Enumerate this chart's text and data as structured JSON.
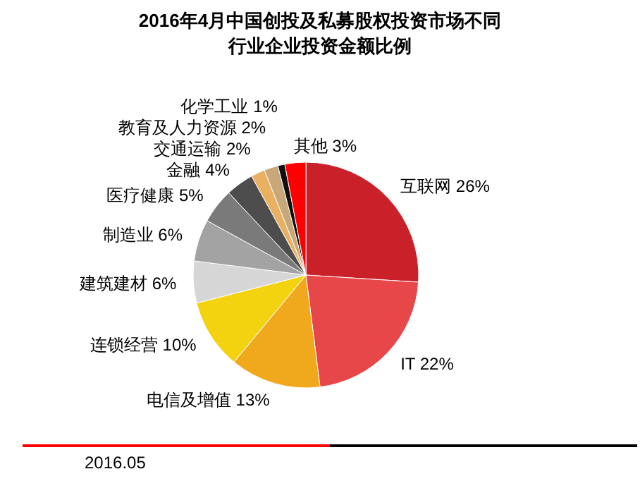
{
  "chart_data": {
    "type": "pie",
    "title": "2016年4月中国创投及私募股权投资市场不同行业企业投资金额比例",
    "categories": [
      "互联网",
      "IT",
      "电信及增值",
      "连锁经营",
      "建筑建材",
      "制造业",
      "医疗健康",
      "金融",
      "交通运输",
      "教育及人力资源",
      "化学工业",
      "其他"
    ],
    "values": [
      26,
      22,
      13,
      10,
      6,
      6,
      5,
      4,
      2,
      2,
      1,
      3
    ],
    "value_labels": [
      "26%",
      "22%",
      "13%",
      "10%",
      "6%",
      "6%",
      "5%",
      "4%",
      "2%",
      "2%",
      "1%",
      "3%"
    ],
    "colors": [
      "#c9202a",
      "#e8474a",
      "#f0a81c",
      "#f3d20f",
      "#d6d6d6",
      "#a3a3a3",
      "#7a7a7a",
      "#4d4d4d",
      "#e8b060",
      "#c8a878",
      "#111111",
      "#ff0000"
    ],
    "annotations": [
      "2016.05"
    ]
  }
}
